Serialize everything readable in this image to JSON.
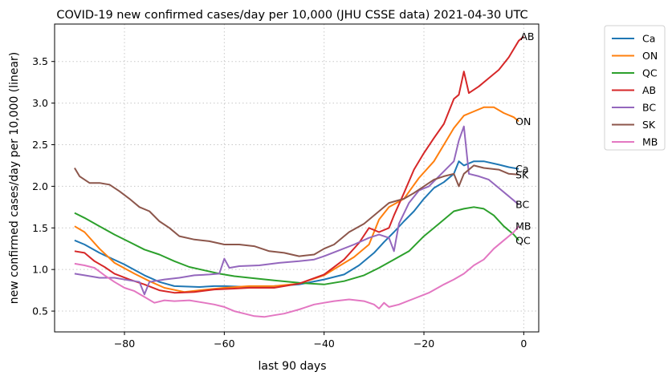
{
  "chart_data": {
    "type": "line",
    "title": "COVID-19 new confirmed cases/day per 10,000 (JHU CSSE data) 2021-04-30 UTC",
    "xlabel": "last 90 days",
    "ylabel": "new confirmed cases/day per 10,000 (linear)",
    "xlim": [
      -94,
      3
    ],
    "ylim": [
      0.25,
      3.95
    ],
    "xticks": [
      -80,
      -60,
      -40,
      -20,
      0
    ],
    "xtick_labels": [
      "−80",
      "−60",
      "−40",
      "−20",
      "0"
    ],
    "yticks": [
      0.5,
      1.0,
      1.5,
      2.0,
      2.5,
      3.0,
      3.5
    ],
    "ytick_labels": [
      "0.5",
      "1.0",
      "1.5",
      "2.0",
      "2.5",
      "3.0",
      "3.5"
    ],
    "grid": true,
    "legend_position": "outside-right",
    "series": [
      {
        "name": "Ca",
        "color": "#1f77b4",
        "end_label": "Ca",
        "points": [
          [
            -90,
            1.35
          ],
          [
            -88,
            1.3
          ],
          [
            -85,
            1.2
          ],
          [
            -80,
            1.06
          ],
          [
            -76,
            0.93
          ],
          [
            -73,
            0.85
          ],
          [
            -70,
            0.8
          ],
          [
            -65,
            0.79
          ],
          [
            -62,
            0.8
          ],
          [
            -60,
            0.8
          ],
          [
            -55,
            0.79
          ],
          [
            -50,
            0.8
          ],
          [
            -45,
            0.82
          ],
          [
            -40,
            0.88
          ],
          [
            -36,
            0.94
          ],
          [
            -33,
            1.05
          ],
          [
            -30,
            1.2
          ],
          [
            -28,
            1.33
          ],
          [
            -26,
            1.45
          ],
          [
            -24,
            1.58
          ],
          [
            -22,
            1.7
          ],
          [
            -20,
            1.85
          ],
          [
            -18,
            1.98
          ],
          [
            -16,
            2.05
          ],
          [
            -14,
            2.15
          ],
          [
            -13,
            2.3
          ],
          [
            -12,
            2.25
          ],
          [
            -10,
            2.3
          ],
          [
            -8,
            2.3
          ],
          [
            -5,
            2.26
          ],
          [
            -3,
            2.23
          ],
          [
            -1,
            2.21
          ]
        ]
      },
      {
        "name": "ON",
        "color": "#ff7f0e",
        "end_label": "ON",
        "points": [
          [
            -90,
            1.52
          ],
          [
            -88,
            1.45
          ],
          [
            -85,
            1.25
          ],
          [
            -82,
            1.08
          ],
          [
            -78,
            0.95
          ],
          [
            -75,
            0.86
          ],
          [
            -72,
            0.78
          ],
          [
            -68,
            0.73
          ],
          [
            -65,
            0.75
          ],
          [
            -60,
            0.78
          ],
          [
            -55,
            0.8
          ],
          [
            -50,
            0.8
          ],
          [
            -45,
            0.83
          ],
          [
            -40,
            0.93
          ],
          [
            -37,
            1.04
          ],
          [
            -34,
            1.15
          ],
          [
            -31,
            1.3
          ],
          [
            -29,
            1.6
          ],
          [
            -27,
            1.75
          ],
          [
            -24,
            1.85
          ],
          [
            -21,
            2.1
          ],
          [
            -18,
            2.3
          ],
          [
            -16,
            2.5
          ],
          [
            -14,
            2.7
          ],
          [
            -12,
            2.85
          ],
          [
            -10,
            2.9
          ],
          [
            -8,
            2.95
          ],
          [
            -6,
            2.95
          ],
          [
            -4,
            2.88
          ],
          [
            -2,
            2.83
          ],
          [
            -1,
            2.78
          ]
        ]
      },
      {
        "name": "QC",
        "color": "#2ca02c",
        "end_label": "QC",
        "points": [
          [
            -90,
            1.68
          ],
          [
            -88,
            1.62
          ],
          [
            -85,
            1.52
          ],
          [
            -82,
            1.42
          ],
          [
            -79,
            1.33
          ],
          [
            -76,
            1.24
          ],
          [
            -73,
            1.18
          ],
          [
            -70,
            1.1
          ],
          [
            -67,
            1.03
          ],
          [
            -64,
            0.99
          ],
          [
            -61,
            0.95
          ],
          [
            -58,
            0.92
          ],
          [
            -55,
            0.9
          ],
          [
            -50,
            0.87
          ],
          [
            -45,
            0.84
          ],
          [
            -40,
            0.82
          ],
          [
            -36,
            0.86
          ],
          [
            -32,
            0.93
          ],
          [
            -29,
            1.02
          ],
          [
            -26,
            1.12
          ],
          [
            -23,
            1.22
          ],
          [
            -20,
            1.4
          ],
          [
            -17,
            1.55
          ],
          [
            -14,
            1.7
          ],
          [
            -12,
            1.73
          ],
          [
            -10,
            1.75
          ],
          [
            -8,
            1.73
          ],
          [
            -6,
            1.65
          ],
          [
            -4,
            1.52
          ],
          [
            -2,
            1.42
          ],
          [
            -1,
            1.35
          ]
        ]
      },
      {
        "name": "AB",
        "color": "#d62728",
        "end_label": "AB",
        "points": [
          [
            -90,
            1.22
          ],
          [
            -88,
            1.2
          ],
          [
            -86,
            1.1
          ],
          [
            -84,
            1.03
          ],
          [
            -82,
            0.95
          ],
          [
            -79,
            0.88
          ],
          [
            -76,
            0.82
          ],
          [
            -73,
            0.75
          ],
          [
            -70,
            0.72
          ],
          [
            -66,
            0.73
          ],
          [
            -62,
            0.76
          ],
          [
            -58,
            0.77
          ],
          [
            -55,
            0.78
          ],
          [
            -50,
            0.78
          ],
          [
            -45,
            0.83
          ],
          [
            -40,
            0.94
          ],
          [
            -36,
            1.12
          ],
          [
            -33,
            1.32
          ],
          [
            -31,
            1.5
          ],
          [
            -29,
            1.45
          ],
          [
            -27,
            1.5
          ],
          [
            -26,
            1.65
          ],
          [
            -24,
            1.92
          ],
          [
            -22,
            2.2
          ],
          [
            -20,
            2.4
          ],
          [
            -18,
            2.58
          ],
          [
            -16,
            2.75
          ],
          [
            -14,
            3.05
          ],
          [
            -13,
            3.1
          ],
          [
            -12,
            3.38
          ],
          [
            -11,
            3.12
          ],
          [
            -9,
            3.2
          ],
          [
            -7,
            3.3
          ],
          [
            -5,
            3.4
          ],
          [
            -3,
            3.55
          ],
          [
            -1,
            3.75
          ],
          [
            0,
            3.8
          ]
        ]
      },
      {
        "name": "BC",
        "color": "#9467bd",
        "end_label": "BC",
        "points": [
          [
            -90,
            0.95
          ],
          [
            -88,
            0.93
          ],
          [
            -85,
            0.9
          ],
          [
            -82,
            0.9
          ],
          [
            -79,
            0.87
          ],
          [
            -77,
            0.85
          ],
          [
            -76,
            0.7
          ],
          [
            -75,
            0.85
          ],
          [
            -72,
            0.88
          ],
          [
            -69,
            0.9
          ],
          [
            -66,
            0.93
          ],
          [
            -63,
            0.94
          ],
          [
            -61,
            0.95
          ],
          [
            -60,
            1.13
          ],
          [
            -59,
            1.02
          ],
          [
            -57,
            1.04
          ],
          [
            -53,
            1.05
          ],
          [
            -49,
            1.08
          ],
          [
            -45,
            1.1
          ],
          [
            -42,
            1.12
          ],
          [
            -40,
            1.16
          ],
          [
            -37,
            1.23
          ],
          [
            -34,
            1.3
          ],
          [
            -31,
            1.38
          ],
          [
            -29,
            1.42
          ],
          [
            -27,
            1.38
          ],
          [
            -26,
            1.22
          ],
          [
            -25,
            1.55
          ],
          [
            -23,
            1.8
          ],
          [
            -21,
            1.95
          ],
          [
            -19,
            2.0
          ],
          [
            -16,
            2.18
          ],
          [
            -14,
            2.3
          ],
          [
            -13,
            2.55
          ],
          [
            -12,
            2.72
          ],
          [
            -11,
            2.15
          ],
          [
            -9,
            2.12
          ],
          [
            -7,
            2.08
          ],
          [
            -5,
            1.98
          ],
          [
            -3,
            1.88
          ],
          [
            -1,
            1.78
          ]
        ]
      },
      {
        "name": "SK",
        "color": "#8c564b",
        "end_label": "SK",
        "points": [
          [
            -90,
            2.22
          ],
          [
            -89,
            2.12
          ],
          [
            -87,
            2.04
          ],
          [
            -85,
            2.04
          ],
          [
            -83,
            2.02
          ],
          [
            -81,
            1.94
          ],
          [
            -79,
            1.85
          ],
          [
            -77,
            1.75
          ],
          [
            -75,
            1.7
          ],
          [
            -73,
            1.58
          ],
          [
            -71,
            1.5
          ],
          [
            -69,
            1.4
          ],
          [
            -66,
            1.36
          ],
          [
            -63,
            1.34
          ],
          [
            -60,
            1.3
          ],
          [
            -57,
            1.3
          ],
          [
            -54,
            1.28
          ],
          [
            -51,
            1.22
          ],
          [
            -48,
            1.2
          ],
          [
            -45,
            1.16
          ],
          [
            -42,
            1.18
          ],
          [
            -40,
            1.25
          ],
          [
            -38,
            1.3
          ],
          [
            -35,
            1.45
          ],
          [
            -32,
            1.55
          ],
          [
            -29,
            1.7
          ],
          [
            -27,
            1.8
          ],
          [
            -24,
            1.85
          ],
          [
            -22,
            1.92
          ],
          [
            -20,
            2.0
          ],
          [
            -18,
            2.08
          ],
          [
            -16,
            2.12
          ],
          [
            -14,
            2.15
          ],
          [
            -13,
            2.0
          ],
          [
            -12,
            2.15
          ],
          [
            -10,
            2.25
          ],
          [
            -8,
            2.22
          ],
          [
            -5,
            2.2
          ],
          [
            -3,
            2.15
          ],
          [
            -1,
            2.14
          ]
        ]
      },
      {
        "name": "MB",
        "color": "#e377c2",
        "end_label": "MB",
        "points": [
          [
            -90,
            1.07
          ],
          [
            -88,
            1.05
          ],
          [
            -86,
            1.02
          ],
          [
            -84,
            0.93
          ],
          [
            -82,
            0.85
          ],
          [
            -80,
            0.78
          ],
          [
            -78,
            0.74
          ],
          [
            -76,
            0.67
          ],
          [
            -74,
            0.6
          ],
          [
            -72,
            0.63
          ],
          [
            -70,
            0.62
          ],
          [
            -67,
            0.63
          ],
          [
            -64,
            0.6
          ],
          [
            -62,
            0.58
          ],
          [
            -60,
            0.55
          ],
          [
            -58,
            0.5
          ],
          [
            -56,
            0.47
          ],
          [
            -54,
            0.44
          ],
          [
            -52,
            0.43
          ],
          [
            -50,
            0.45
          ],
          [
            -48,
            0.47
          ],
          [
            -45,
            0.52
          ],
          [
            -42,
            0.58
          ],
          [
            -40,
            0.6
          ],
          [
            -38,
            0.62
          ],
          [
            -35,
            0.64
          ],
          [
            -32,
            0.62
          ],
          [
            -30,
            0.58
          ],
          [
            -29,
            0.53
          ],
          [
            -28,
            0.6
          ],
          [
            -27,
            0.55
          ],
          [
            -25,
            0.58
          ],
          [
            -22,
            0.65
          ],
          [
            -19,
            0.72
          ],
          [
            -16,
            0.82
          ],
          [
            -14,
            0.88
          ],
          [
            -12,
            0.95
          ],
          [
            -10,
            1.05
          ],
          [
            -8,
            1.12
          ],
          [
            -6,
            1.25
          ],
          [
            -4,
            1.35
          ],
          [
            -2,
            1.45
          ],
          [
            -1,
            1.52
          ]
        ]
      }
    ]
  }
}
